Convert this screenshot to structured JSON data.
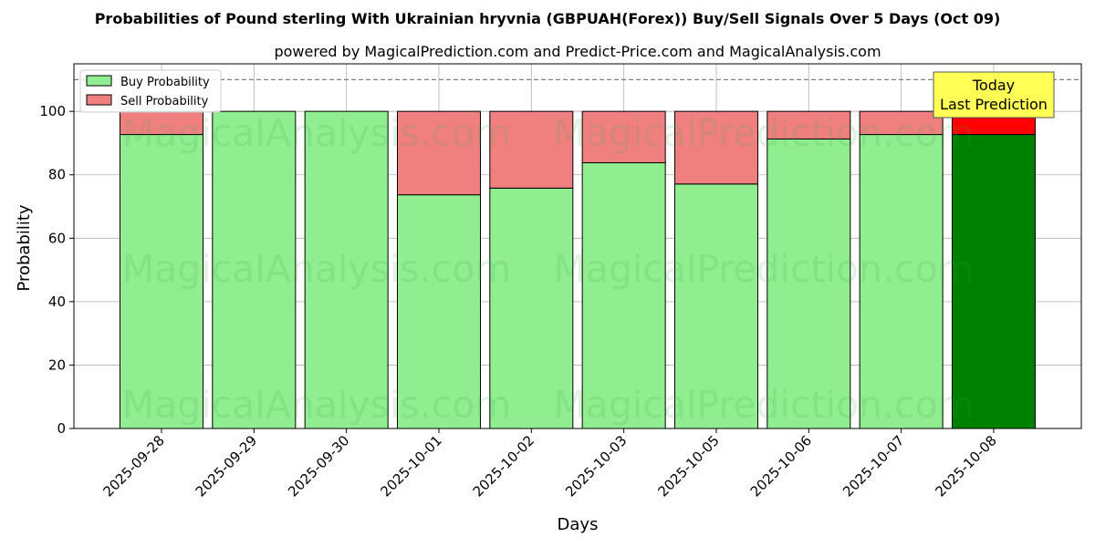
{
  "chart_data": {
    "type": "bar",
    "stacked": true,
    "title": "Probabilities of Pound sterling With Ukrainian hryvnia (GBPUAH(Forex)) Buy/Sell Signals Over 5 Days (Oct 09)",
    "subtitle": "powered by MagicalPrediction.com and Predict-Price.com and MagicalAnalysis.com",
    "xlabel": "Days",
    "ylabel": "Probability",
    "ylim": [
      0,
      115
    ],
    "yticks": [
      0,
      20,
      40,
      60,
      80,
      100
    ],
    "reference_line": 110,
    "grid": true,
    "legend_position": "top-left",
    "categories": [
      "2025-09-28",
      "2025-09-29",
      "2025-09-30",
      "2025-10-01",
      "2025-10-02",
      "2025-10-03",
      "2025-10-05",
      "2025-10-06",
      "2025-10-07",
      "2025-10-08"
    ],
    "series": [
      {
        "name": "Buy Probability",
        "values": [
          92.7,
          100,
          100,
          73.7,
          75.8,
          83.8,
          77.1,
          91.3,
          92.7,
          92.7
        ],
        "color": "#90ee90",
        "highlight_color": "#008000"
      },
      {
        "name": "Sell Probability",
        "values": [
          7.3,
          0,
          0,
          26.3,
          24.2,
          16.2,
          22.9,
          8.7,
          7.3,
          7.3
        ],
        "color": "#f08080",
        "highlight_color": "#ff0000"
      }
    ],
    "highlight_index": 9,
    "annotation": {
      "line1": "Today",
      "line2": "Last Prediction",
      "bg": "#ffff55"
    },
    "watermarks": [
      "MagicalAnalysis.com",
      "MagicalPrediction.com"
    ]
  }
}
